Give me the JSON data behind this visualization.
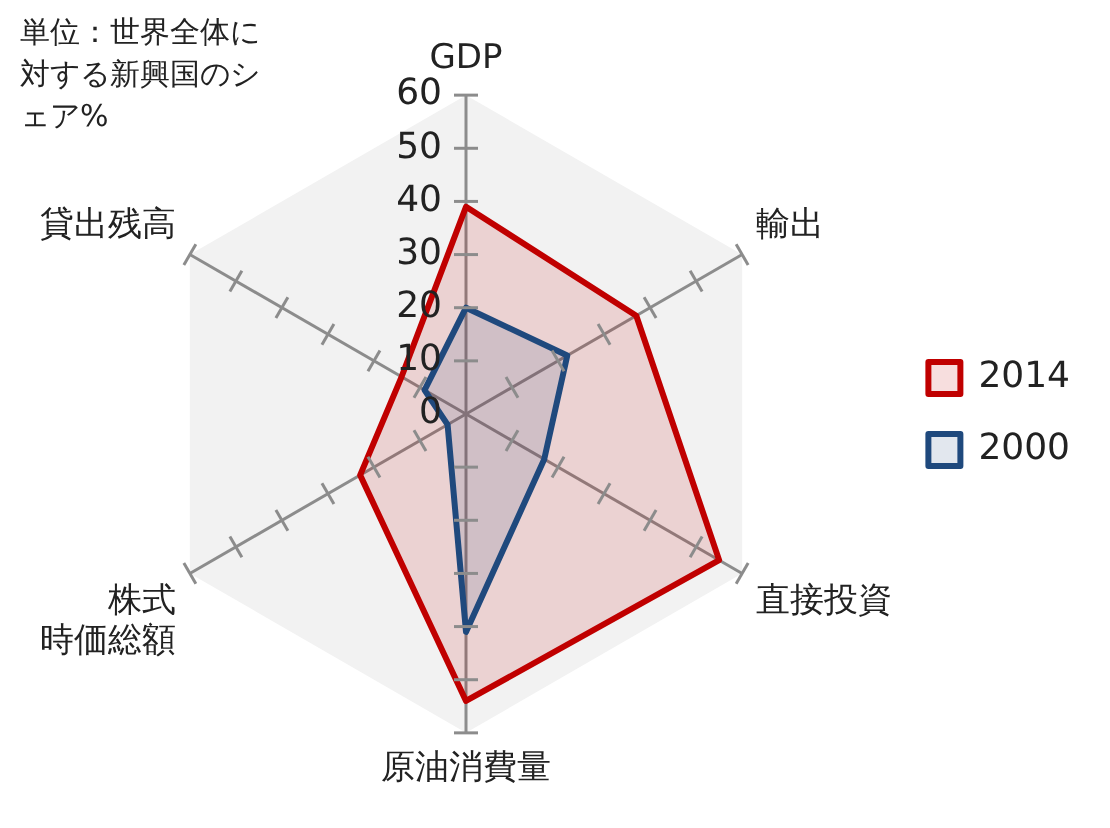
{
  "chart_data": {
    "type": "radar",
    "annotations": [
      "単位：世界全体に対する新興国のシェア%"
    ],
    "categories": [
      "GDP",
      "輸出",
      "直接投資",
      "原油消費量",
      "株式時価総額",
      "貸出残高"
    ],
    "series": [
      {
        "name": "2014",
        "color": "#c00000",
        "values": [
          39,
          37,
          55,
          54,
          23,
          14
        ]
      },
      {
        "name": "2000",
        "color": "#1f497d",
        "values": [
          20,
          22,
          17,
          41,
          4,
          9
        ]
      }
    ],
    "ylim": [
      0,
      60
    ],
    "yticks": [
      0,
      10,
      20,
      30,
      40,
      50,
      60
    ],
    "grid": false,
    "legend": "right",
    "marker": "none",
    "line_style": "solid"
  }
}
